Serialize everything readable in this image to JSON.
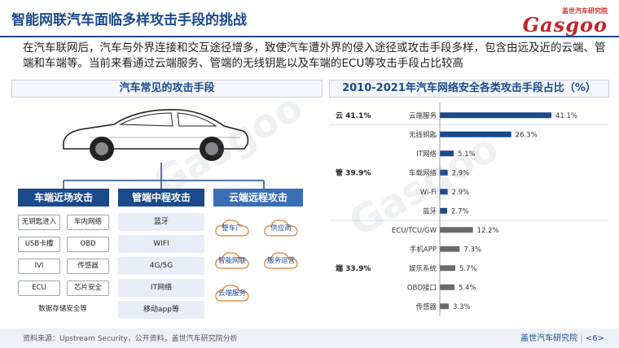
{
  "title": "智能网联汽车面临多样攻击手段的挑战",
  "logo": {
    "cn": "盖世汽车研究院",
    "en": "Gasgoo"
  },
  "intro": "在汽车联网后，汽车与外界连接和交互途径增多，致使汽车遭外界的侵入途径或攻击手段多样，包含由远及近的云端、管端和车端等。当前来看通过云端服务、管端的无线钥匙以及车端的ECU等攻击手段占比较高",
  "left_panel": {
    "title": "汽车常见的攻击手段",
    "near": {
      "header": "车端近场攻击",
      "items": [
        "无钥匙进入",
        "车内网络",
        "USB卡槽",
        "OBD",
        "IVI",
        "传感器",
        "ECU",
        "芯片安全",
        "数据存储安全等"
      ]
    },
    "mid": {
      "header": "管端中程攻击",
      "items": [
        "蓝牙",
        "WIFI",
        "4G/5G",
        "IT网络",
        "移动app等"
      ]
    },
    "cloud": {
      "header": "云端远程攻击",
      "items": [
        "整车厂",
        "供应商",
        "智能网联",
        "服务运营",
        "云端服务"
      ]
    }
  },
  "right_panel": {
    "title": "2010-2021年汽车网络安全各类攻击手段占比（%）"
  },
  "chart_data": {
    "type": "bar",
    "orientation": "horizontal",
    "groups": [
      {
        "label": "云 41.1%",
        "categories": [
          "云端服务"
        ],
        "values": [
          41.1
        ]
      },
      {
        "label": "管 39.9%",
        "categories": [
          "无线钥匙",
          "IT网络",
          "车载网络",
          "Wi-Fi",
          "蓝牙"
        ],
        "values": [
          26.3,
          5.1,
          2.9,
          2.9,
          2.7
        ]
      },
      {
        "label": "端 33.9%",
        "categories": [
          "ECU/TCU/GW",
          "手机APP",
          "娱乐系统",
          "OBD接口",
          "传感器"
        ],
        "values": [
          12.2,
          7.3,
          5.7,
          5.4,
          3.3
        ]
      }
    ],
    "value_labels": [
      "41.1%",
      "26.3%",
      "5.1%",
      "2.9%",
      "2.9%",
      "2.7%",
      "12.2%",
      "7.3%",
      "5.7%",
      "5.4%",
      "3.3%"
    ],
    "colors": {
      "cloud": "#1a4a8c",
      "pipe": "#1a4a8c",
      "end": "#6b6b6b"
    },
    "xlim": [
      0,
      45
    ]
  },
  "footer": {
    "source": "资料来源：Upstream Security，公开资料，盖世汽车研究院分析",
    "org": "盖世汽车研究院",
    "page": "<6>"
  }
}
